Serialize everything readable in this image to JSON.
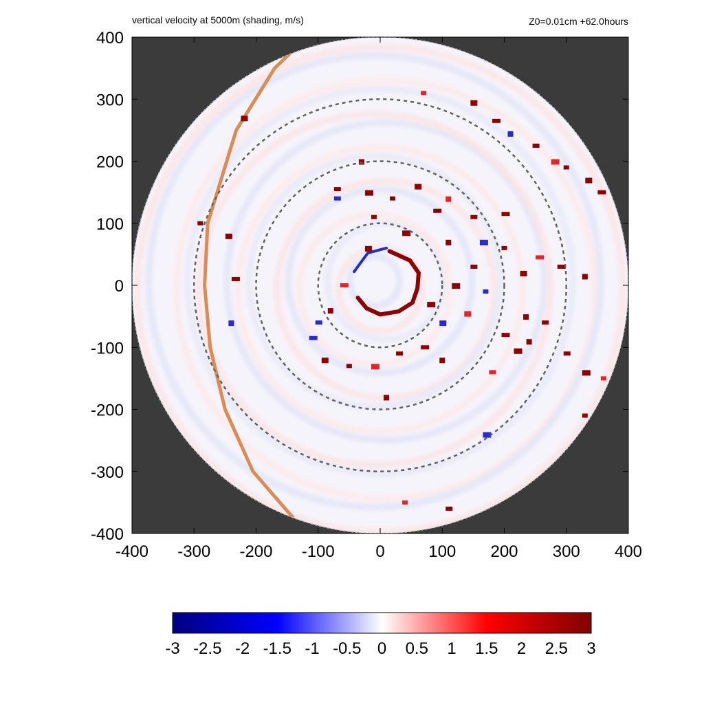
{
  "chart_data": {
    "type": "heatmap",
    "title": "vertical velocity at 5000m (shading, m/s)",
    "subtitle": "Z0=0.01cm  +62.0hours",
    "xlabel": "",
    "ylabel": "",
    "xlim": [
      -400,
      400
    ],
    "ylim": [
      -400,
      400
    ],
    "x_ticks": [
      "-400",
      "-300",
      "-200",
      "-100",
      "0",
      "100",
      "200",
      "300",
      "400"
    ],
    "y_ticks": [
      "400",
      "300",
      "200",
      "100",
      "0",
      "-100",
      "-200",
      "-300",
      "-400"
    ],
    "domain_radius": 400,
    "range_rings_radius": [
      100,
      200,
      300
    ],
    "colorbar": {
      "range": [
        -3,
        3
      ],
      "ticks": [
        "-3",
        "-2.5",
        "-2",
        "-1.5",
        "-1",
        "-0.5",
        "0",
        "0.5",
        "1",
        "1.5",
        "2",
        "2.5",
        "3"
      ],
      "colors": [
        "#00007f",
        "#0000ff",
        "#ffffff",
        "#ff0000",
        "#7f0000"
      ]
    },
    "colors": {
      "background": "#3b3b3b",
      "ring": "#606060",
      "track": "#d98c56"
    },
    "track_curve": [
      [
        -118,
        400
      ],
      [
        -170,
        350
      ],
      [
        -232,
        250
      ],
      [
        -278,
        100
      ],
      [
        -283,
        0
      ],
      [
        -274,
        -100
      ],
      [
        -250,
        -200
      ],
      [
        -205,
        -300
      ],
      [
        -140,
        -375
      ]
    ],
    "eyewall_strong": [
      [
        15,
        55
      ],
      [
        48,
        40
      ],
      [
        62,
        20
      ],
      [
        60,
        -5
      ],
      [
        52,
        -28
      ],
      [
        30,
        -42
      ],
      [
        0,
        -47
      ],
      [
        -22,
        -37
      ],
      [
        -36,
        -20
      ]
    ],
    "eyewall_blue": [
      [
        -42,
        22
      ],
      [
        -20,
        52
      ],
      [
        10,
        60
      ]
    ],
    "convective_cells": [
      [
        70,
        310
      ],
      [
        150,
        295
      ],
      [
        185,
        265
      ],
      [
        210,
        245
      ],
      [
        250,
        225
      ],
      [
        280,
        200
      ],
      [
        300,
        190
      ],
      [
        335,
        170
      ],
      [
        355,
        150
      ],
      [
        -30,
        200
      ],
      [
        -70,
        140
      ],
      [
        -20,
        150
      ],
      [
        20,
        140
      ],
      [
        60,
        160
      ],
      [
        90,
        120
      ],
      [
        110,
        140
      ],
      [
        150,
        110
      ],
      [
        165,
        70
      ],
      [
        200,
        60
      ],
      [
        230,
        20
      ],
      [
        255,
        45
      ],
      [
        110,
        70
      ],
      [
        150,
        30
      ],
      [
        120,
        0
      ],
      [
        170,
        -10
      ],
      [
        140,
        -45
      ],
      [
        200,
        -80
      ],
      [
        240,
        -90
      ],
      [
        300,
        -110
      ],
      [
        330,
        -140
      ],
      [
        360,
        -150
      ],
      [
        100,
        -60
      ],
      [
        70,
        -100
      ],
      [
        100,
        -120
      ],
      [
        30,
        -110
      ],
      [
        -10,
        -130
      ],
      [
        -50,
        -130
      ],
      [
        -90,
        -120
      ],
      [
        -110,
        -85
      ],
      [
        10,
        -180
      ],
      [
        180,
        -140
      ],
      [
        220,
        -105
      ],
      [
        -290,
        100
      ],
      [
        -245,
        80
      ],
      [
        -235,
        10
      ],
      [
        -240,
        -60
      ],
      [
        -70,
        155
      ],
      [
        40,
        85
      ],
      [
        -10,
        110
      ],
      [
        -20,
        60
      ],
      [
        -60,
        0
      ],
      [
        -80,
        -40
      ],
      [
        -100,
        -60
      ],
      [
        80,
        -30
      ],
      [
        330,
        -210
      ],
      [
        340,
        -230
      ],
      [
        290,
        30
      ],
      [
        330,
        15
      ],
      [
        110,
        -360
      ],
      [
        170,
        -240
      ],
      [
        40,
        -350
      ],
      [
        -220,
        270
      ],
      [
        200,
        115
      ],
      [
        235,
        -50
      ],
      [
        265,
        -60
      ]
    ]
  }
}
